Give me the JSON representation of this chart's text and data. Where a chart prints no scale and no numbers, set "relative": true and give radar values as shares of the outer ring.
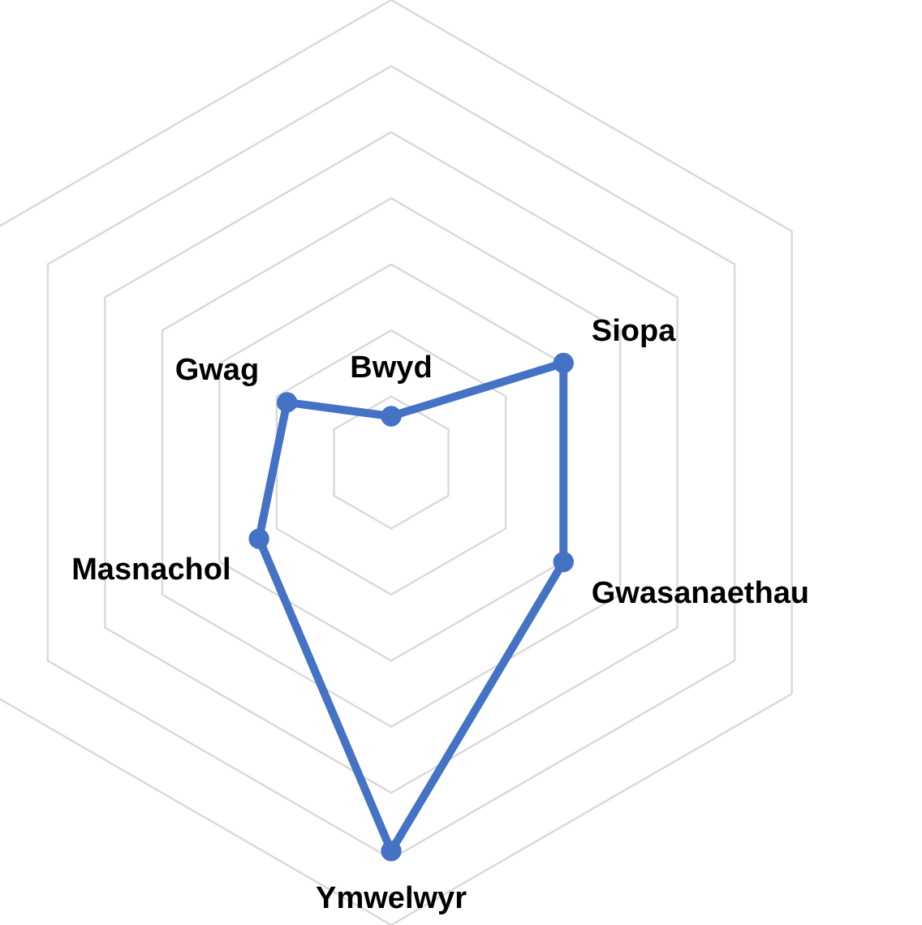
{
  "chart_data": {
    "type": "radar",
    "relative": true,
    "categories": [
      "Bwyd",
      "Siopa",
      "Gwasanaethau",
      "Ymwelwyr",
      "Masnachol",
      "Gwag"
    ],
    "series": [
      {
        "color": "#4472c4",
        "values": [
          0.1,
          0.43,
          0.43,
          0.84,
          0.33,
          0.26
        ]
      }
    ],
    "grid": true,
    "marker": "circle",
    "line_style": "solid"
  }
}
